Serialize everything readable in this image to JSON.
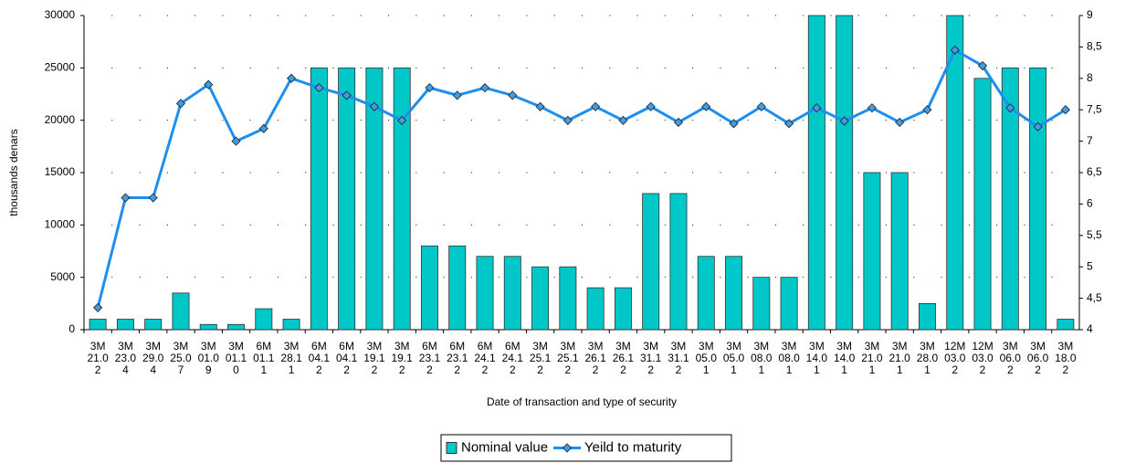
{
  "chart_data": {
    "type": "bar_line",
    "y_label": "thousands denars",
    "x_label": "Date of transaction and type of security",
    "categories": [
      "3M\n21.0\n2",
      "3M\n23.0\n4",
      "3M\n29.0\n4",
      "3M\n25.0\n7",
      "3M\n01.0\n9",
      "3M\n01.1\n0",
      "6M\n01.1\n1",
      "3M\n28.1\n1",
      "6M\n04.1\n2",
      "6M\n04.1\n2",
      "3M\n19.1\n2",
      "3M\n19.1\n2",
      "6M\n23.1\n2",
      "6M\n23.1\n2",
      "6M\n24.1\n2",
      "6M\n24.1\n2",
      "3M\n25.1\n2",
      "3M\n25.1\n2",
      "3M\n26.1\n2",
      "3M\n26.1\n2",
      "3M\n31.1\n2",
      "3M\n31.1\n2",
      "3M\n05.0\n1",
      "3M\n05.0\n1",
      "3M\n08.0\n1",
      "3M\n08.0\n1",
      "3M\n14.0\n1",
      "3M\n14.0\n1",
      "3M\n21.0\n1",
      "3M\n21.0\n1",
      "3M\n28.0\n1",
      "12M\n03.0\n2",
      "12M\n03.0\n2",
      "3M\n06.0\n2",
      "3M\n06.0\n2",
      "3M\n18.0\n2"
    ],
    "series": [
      {
        "name": "Nominal value",
        "type": "bar",
        "color": "#00c8c8",
        "values": [
          1000,
          1000,
          1000,
          3500,
          500,
          500,
          2000,
          1000,
          25000,
          25000,
          25000,
          25000,
          8000,
          8000,
          7000,
          7000,
          6000,
          6000,
          4000,
          4000,
          13000,
          13000,
          7000,
          7000,
          5000,
          5000,
          30000,
          30000,
          15000,
          15000,
          2500,
          30000,
          24000,
          25000,
          25000,
          1000
        ]
      },
      {
        "name": "Yeild to maturity",
        "type": "line",
        "axis": "y2",
        "color": "#1e8fef",
        "values": [
          4.35,
          6.1,
          6.1,
          7.6,
          7.9,
          7.0,
          7.2,
          8.0,
          7.85,
          7.73,
          7.55,
          7.33,
          7.85,
          7.73,
          7.85,
          7.73,
          7.55,
          7.33,
          7.55,
          7.33,
          7.55,
          7.3,
          7.55,
          7.28,
          7.55,
          7.28,
          7.53,
          7.32,
          7.53,
          7.3,
          7.5,
          8.45,
          8.2,
          7.53,
          7.23,
          7.5
        ]
      }
    ],
    "ylim": [
      0,
      30000
    ],
    "yticks": [
      0,
      5000,
      10000,
      15000,
      20000,
      25000,
      30000
    ],
    "y2lim": [
      4,
      9
    ],
    "y2ticks": [
      4,
      {
        "value": 4.5,
        "label": "4,5"
      },
      5,
      {
        "value": 5.5,
        "label": "5,5"
      },
      6,
      {
        "value": 6.5,
        "label": "6,5"
      },
      7,
      {
        "value": 7.5,
        "label": "7,5"
      },
      8,
      {
        "value": 8.5,
        "label": "8,5"
      },
      9
    ],
    "grid": true,
    "legend": "bottom"
  }
}
